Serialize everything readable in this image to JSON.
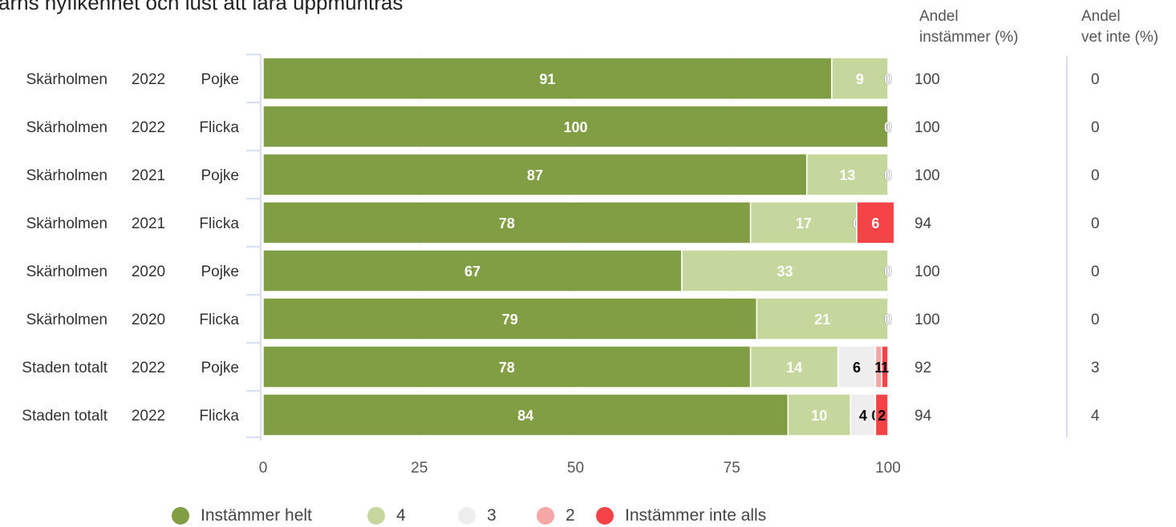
{
  "header": {
    "title": "ärns nyfikenhet och lust att lära uppmuntras",
    "col_agree": "Andel\ninstämmer (%)",
    "col_unknown": "Andel\nvet inte (%)"
  },
  "chart_data": {
    "type": "bar",
    "orientation": "horizontal",
    "stacked": true,
    "xlim": [
      0,
      100
    ],
    "xticks": [
      "0",
      "25",
      "50",
      "75",
      "100"
    ],
    "categories": [
      {
        "school": "Skärholmen",
        "year": "2022",
        "gender": "Pojke"
      },
      {
        "school": "Skärholmen",
        "year": "2022",
        "gender": "Flicka"
      },
      {
        "school": "Skärholmen",
        "year": "2021",
        "gender": "Pojke"
      },
      {
        "school": "Skärholmen",
        "year": "2021",
        "gender": "Flicka"
      },
      {
        "school": "Skärholmen",
        "year": "2020",
        "gender": "Pojke"
      },
      {
        "school": "Skärholmen",
        "year": "2020",
        "gender": "Flicka"
      },
      {
        "school": "Staden totalt",
        "year": "2022",
        "gender": "Pojke"
      },
      {
        "school": "Staden totalt",
        "year": "2022",
        "gender": "Flicka"
      }
    ],
    "series": [
      {
        "name": "Instämmer helt",
        "color": "#829e45",
        "values": [
          91,
          100,
          87,
          78,
          67,
          79,
          78,
          84
        ],
        "labels": [
          "91",
          "100",
          "87",
          "78",
          "67",
          "79",
          "78",
          "84"
        ]
      },
      {
        "name": "4",
        "color": "#c5d79d",
        "values": [
          9,
          0,
          13,
          17,
          33,
          21,
          14,
          10
        ],
        "labels": [
          "9",
          "",
          "13",
          "17",
          "33",
          "21",
          "14",
          "10"
        ]
      },
      {
        "name": "3",
        "color": "#eeeeee",
        "values": [
          0,
          0,
          0,
          0,
          0,
          0,
          6,
          4
        ],
        "labels": [
          "0",
          "0",
          "0",
          "0",
          "0",
          "0",
          "6",
          "4"
        ]
      },
      {
        "name": "2",
        "color": "#f7a6a6",
        "values": [
          0,
          0,
          0,
          0,
          0,
          0,
          1,
          0
        ],
        "labels": [
          "",
          "",
          "",
          "",
          "",
          "",
          "1",
          "0"
        ]
      },
      {
        "name": "Instämmer inte alls",
        "color": "#f44346",
        "values": [
          0,
          0,
          0,
          6,
          0,
          0,
          1,
          2
        ],
        "labels": [
          "",
          "",
          "",
          "6",
          "",
          "",
          "1",
          "2"
        ]
      }
    ],
    "agree_pct": [
      "100",
      "100",
      "100",
      "94",
      "100",
      "100",
      "92",
      "94"
    ],
    "unknown_pct": [
      "0",
      "0",
      "0",
      "0",
      "0",
      "0",
      "3",
      "4"
    ],
    "legend_position": "bottom"
  }
}
